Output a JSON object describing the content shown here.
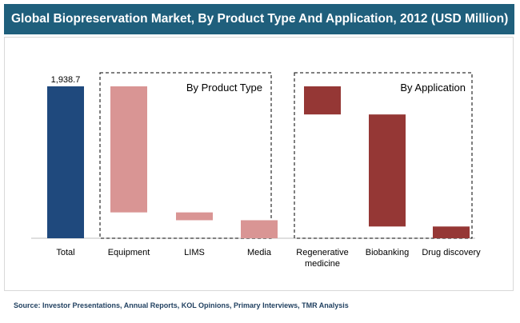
{
  "title": "Global Biopreservation Market, By Product Type And Application, 2012 (USD Million)",
  "source": "Source: Investor Presentations, Annual Reports, KOL Opinions, Primary Interviews, TMR Analysis",
  "colors": {
    "header": "#1f5f7c",
    "total": "#1f497d",
    "product": "#d99594",
    "application": "#953735"
  },
  "chart_data": {
    "type": "bar",
    "subtype": "waterfall",
    "title": "Global Biopreservation Market, By Product Type And Application, 2012 (USD Million)",
    "unit": "USD Million",
    "ylim": [
      0,
      1938.7
    ],
    "grid": false,
    "groups": [
      {
        "label": "By Product Type",
        "categories": [
          "Equipment",
          "LIMS",
          "Media"
        ]
      },
      {
        "label": "By Application",
        "categories": [
          "Regenerative medicine",
          "Biobanking",
          "Drug discovery"
        ]
      }
    ],
    "categories": [
      "Total",
      "Equipment",
      "LIMS",
      "Media",
      "Regenerative medicine",
      "Biobanking",
      "Drug discovery"
    ],
    "category_lines": [
      [
        "Total"
      ],
      [
        "Equipment"
      ],
      [
        "LIMS"
      ],
      [
        "Media"
      ],
      [
        "Regenerative",
        "medicine"
      ],
      [
        "Biobanking"
      ],
      [
        "Drug discovery"
      ]
    ],
    "bars": [
      {
        "category": "Total",
        "group": "total",
        "start": 0,
        "end": 1938.7,
        "label": "1,938.7"
      },
      {
        "category": "Equipment",
        "group": "product",
        "start": 330,
        "end": 1938.7
      },
      {
        "category": "LIMS",
        "group": "product",
        "start": 230,
        "end": 330
      },
      {
        "category": "Media",
        "group": "product",
        "start": 0,
        "end": 230
      },
      {
        "category": "Regenerative medicine",
        "group": "application",
        "start": 1580,
        "end": 1938.7
      },
      {
        "category": "Biobanking",
        "group": "application",
        "start": 150,
        "end": 1580
      },
      {
        "category": "Drug discovery",
        "group": "application",
        "start": 0,
        "end": 150
      }
    ]
  }
}
